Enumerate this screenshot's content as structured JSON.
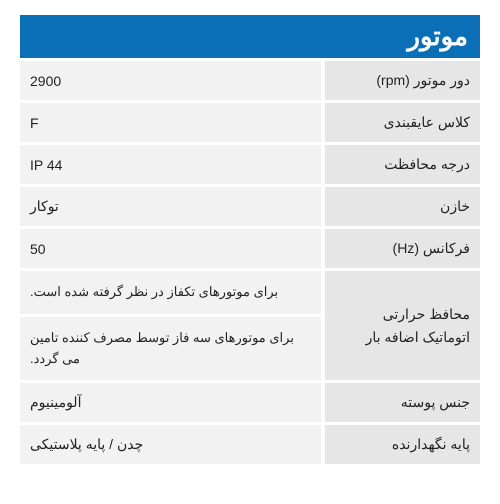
{
  "header": {
    "title": "موتور",
    "bg_color": "#0a6fb7",
    "text_color": "#ffffff"
  },
  "colors": {
    "label_bg": "#e6e6e6",
    "value_bg": "#f2f2f2",
    "text": "#222222"
  },
  "rows": [
    {
      "label": "دور موتور (rpm)",
      "value": "2900"
    },
    {
      "label": "کلاس عایقبندی",
      "value": "F"
    },
    {
      "label": "درجه محافظت",
      "value": "IP 44"
    },
    {
      "label": "خازن",
      "value": "توکار"
    },
    {
      "label": "فرکانس (Hz)",
      "value": "50"
    }
  ],
  "merged": {
    "label": "محافظ حرارتی اتوماتیک اضافه بار",
    "values": [
      "برای موتورهای تکفاز در نظر گرفته شده است.",
      "برای موتورهای سه فاز توسط مصرف کننده تامین می گردد."
    ]
  },
  "rows_after": [
    {
      "label": "جنس پوسته",
      "value": "آلومینیوم"
    },
    {
      "label": "پایه نگهدارنده",
      "value": "چدن / پایه پلاستیکی"
    }
  ]
}
